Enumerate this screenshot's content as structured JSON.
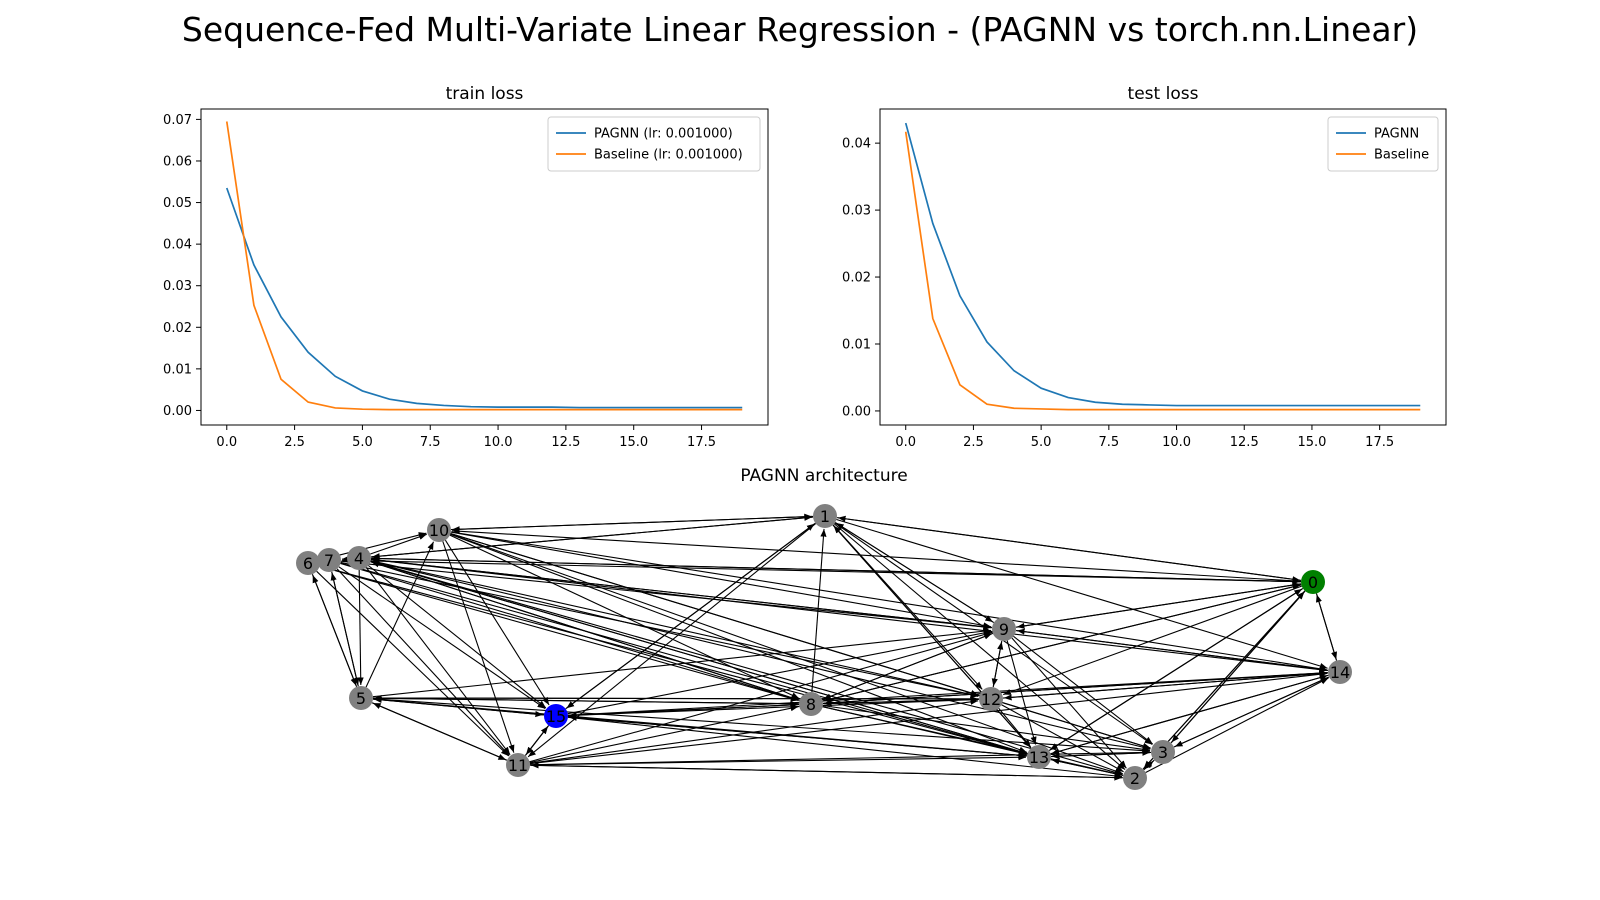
{
  "figure": {
    "title": "Sequence-Fed Multi-Variate Linear Regression - (PAGNN vs torch.nn.Linear)"
  },
  "colors": {
    "pagnn": "#1f77b4",
    "baseline": "#ff7f0e",
    "node_default": "#808080",
    "node_input": "#008000",
    "node_output": "#0000ff",
    "edge": "#000000"
  },
  "chart_data": [
    {
      "type": "line",
      "title": "train loss",
      "xlabel": "",
      "ylabel": "",
      "xlim": [
        -0.95,
        19.95
      ],
      "ylim": [
        -0.0035,
        0.0725
      ],
      "xticks": [
        0.0,
        2.5,
        5.0,
        7.5,
        10.0,
        12.5,
        15.0,
        17.5
      ],
      "xtick_labels": [
        "0.0",
        "2.5",
        "5.0",
        "7.5",
        "10.0",
        "12.5",
        "15.0",
        "17.5"
      ],
      "yticks": [
        0.0,
        0.01,
        0.02,
        0.03,
        0.04,
        0.05,
        0.06,
        0.07
      ],
      "ytick_labels": [
        "0.00",
        "0.01",
        "0.02",
        "0.03",
        "0.04",
        "0.05",
        "0.06",
        "0.07"
      ],
      "grid": false,
      "legend_position": "top-right",
      "x": [
        0,
        1,
        2,
        3,
        4,
        5,
        6,
        7,
        8,
        9,
        10,
        11,
        12,
        13,
        14,
        15,
        16,
        17,
        18,
        19
      ],
      "series": [
        {
          "name": "PAGNN (lr: 0.001000)",
          "color": "#1f77b4",
          "values": [
            0.0535,
            0.035,
            0.0225,
            0.014,
            0.0082,
            0.0047,
            0.0027,
            0.0017,
            0.0012,
            0.0009,
            0.0008,
            0.0008,
            0.0008,
            0.0007,
            0.0007,
            0.0007,
            0.0007,
            0.0007,
            0.0007,
            0.0007
          ]
        },
        {
          "name": "Baseline (lr: 0.001000)",
          "color": "#ff7f0e",
          "values": [
            0.0695,
            0.0253,
            0.0075,
            0.002,
            0.0006,
            0.0003,
            0.0002,
            0.0002,
            0.0002,
            0.0002,
            0.0002,
            0.0002,
            0.0002,
            0.0002,
            0.0002,
            0.0002,
            0.0002,
            0.0002,
            0.0002,
            0.0002
          ]
        }
      ]
    },
    {
      "type": "line",
      "title": "test loss",
      "xlabel": "",
      "ylabel": "",
      "xlim": [
        -0.95,
        19.95
      ],
      "ylim": [
        -0.0021,
        0.0451
      ],
      "xticks": [
        0.0,
        2.5,
        5.0,
        7.5,
        10.0,
        12.5,
        15.0,
        17.5
      ],
      "xtick_labels": [
        "0.0",
        "2.5",
        "5.0",
        "7.5",
        "10.0",
        "12.5",
        "15.0",
        "17.5"
      ],
      "yticks": [
        0.0,
        0.01,
        0.02,
        0.03,
        0.04
      ],
      "ytick_labels": [
        "0.00",
        "0.01",
        "0.02",
        "0.03",
        "0.04"
      ],
      "grid": false,
      "legend_position": "top-right",
      "x": [
        0,
        1,
        2,
        3,
        4,
        5,
        6,
        7,
        8,
        9,
        10,
        11,
        12,
        13,
        14,
        15,
        16,
        17,
        18,
        19
      ],
      "series": [
        {
          "name": "PAGNN",
          "color": "#1f77b4",
          "values": [
            0.043,
            0.028,
            0.0172,
            0.0103,
            0.006,
            0.0034,
            0.002,
            0.0013,
            0.001,
            0.0009,
            0.0008,
            0.0008,
            0.0008,
            0.0008,
            0.0008,
            0.0008,
            0.0008,
            0.0008,
            0.0008,
            0.0008
          ]
        },
        {
          "name": "Baseline",
          "color": "#ff7f0e",
          "values": [
            0.0417,
            0.0138,
            0.0039,
            0.001,
            0.0004,
            0.0003,
            0.0002,
            0.0002,
            0.0002,
            0.0002,
            0.0002,
            0.0002,
            0.0002,
            0.0002,
            0.0002,
            0.0002,
            0.0002,
            0.0002,
            0.0002,
            0.0002
          ]
        }
      ]
    }
  ],
  "graph": {
    "title": "PAGNN architecture",
    "input_node": "0",
    "output_node": "15",
    "nodes": [
      "0",
      "1",
      "2",
      "3",
      "4",
      "5",
      "6",
      "7",
      "8",
      "9",
      "10",
      "11",
      "12",
      "13",
      "14",
      "15"
    ],
    "edges": [
      [
        "0",
        "1"
      ],
      [
        "1",
        "0"
      ],
      [
        "0",
        "4"
      ],
      [
        "4",
        "0"
      ],
      [
        "0",
        "9"
      ],
      [
        "9",
        "0"
      ],
      [
        "0",
        "10"
      ],
      [
        "0",
        "12"
      ],
      [
        "0",
        "13"
      ],
      [
        "13",
        "0"
      ],
      [
        "0",
        "3"
      ],
      [
        "3",
        "0"
      ],
      [
        "0",
        "8"
      ],
      [
        "8",
        "0"
      ],
      [
        "0",
        "14"
      ],
      [
        "14",
        "0"
      ],
      [
        "0",
        "7"
      ],
      [
        "0",
        "2"
      ],
      [
        "2",
        "0"
      ],
      [
        "1",
        "4"
      ],
      [
        "4",
        "1"
      ],
      [
        "1",
        "10"
      ],
      [
        "10",
        "1"
      ],
      [
        "1",
        "9"
      ],
      [
        "9",
        "1"
      ],
      [
        "1",
        "12"
      ],
      [
        "1",
        "13"
      ],
      [
        "13",
        "1"
      ],
      [
        "1",
        "3"
      ],
      [
        "1",
        "2"
      ],
      [
        "1",
        "15"
      ],
      [
        "15",
        "1"
      ],
      [
        "8",
        "1"
      ],
      [
        "1",
        "11"
      ],
      [
        "1",
        "14"
      ],
      [
        "4",
        "10"
      ],
      [
        "4",
        "5"
      ],
      [
        "4",
        "9"
      ],
      [
        "9",
        "4"
      ],
      [
        "4",
        "8"
      ],
      [
        "8",
        "4"
      ],
      [
        "4",
        "12"
      ],
      [
        "4",
        "13"
      ],
      [
        "13",
        "4"
      ],
      [
        "4",
        "3"
      ],
      [
        "4",
        "2"
      ],
      [
        "4",
        "14"
      ],
      [
        "4",
        "15"
      ],
      [
        "4",
        "11"
      ],
      [
        "4",
        "7"
      ],
      [
        "6",
        "5"
      ],
      [
        "5",
        "6"
      ],
      [
        "6",
        "10"
      ],
      [
        "6",
        "13"
      ],
      [
        "6",
        "11"
      ],
      [
        "6",
        "8"
      ],
      [
        "7",
        "5"
      ],
      [
        "5",
        "7"
      ],
      [
        "7",
        "15"
      ],
      [
        "7",
        "11"
      ],
      [
        "7",
        "13"
      ],
      [
        "7",
        "8"
      ],
      [
        "7",
        "9"
      ],
      [
        "7",
        "12"
      ],
      [
        "10",
        "9"
      ],
      [
        "10",
        "13"
      ],
      [
        "10",
        "12"
      ],
      [
        "10",
        "8"
      ],
      [
        "10",
        "15"
      ],
      [
        "10",
        "11"
      ],
      [
        "10",
        "3"
      ],
      [
        "10",
        "2"
      ],
      [
        "10",
        "14"
      ],
      [
        "5",
        "10"
      ],
      [
        "5",
        "15"
      ],
      [
        "15",
        "5"
      ],
      [
        "5",
        "8"
      ],
      [
        "8",
        "5"
      ],
      [
        "5",
        "12"
      ],
      [
        "12",
        "5"
      ],
      [
        "5",
        "9"
      ],
      [
        "5",
        "11"
      ],
      [
        "11",
        "5"
      ],
      [
        "5",
        "13"
      ],
      [
        "5",
        "3"
      ],
      [
        "15",
        "8"
      ],
      [
        "8",
        "15"
      ],
      [
        "15",
        "12"
      ],
      [
        "15",
        "13"
      ],
      [
        "13",
        "15"
      ],
      [
        "15",
        "2"
      ],
      [
        "15",
        "9"
      ],
      [
        "15",
        "11"
      ],
      [
        "11",
        "15"
      ],
      [
        "15",
        "14"
      ],
      [
        "11",
        "8"
      ],
      [
        "11",
        "12"
      ],
      [
        "11",
        "13"
      ],
      [
        "11",
        "2"
      ],
      [
        "2",
        "11"
      ],
      [
        "11",
        "3"
      ],
      [
        "11",
        "9"
      ],
      [
        "11",
        "14"
      ],
      [
        "8",
        "9"
      ],
      [
        "9",
        "8"
      ],
      [
        "8",
        "12"
      ],
      [
        "12",
        "8"
      ],
      [
        "8",
        "13"
      ],
      [
        "8",
        "3"
      ],
      [
        "8",
        "2"
      ],
      [
        "8",
        "14"
      ],
      [
        "14",
        "8"
      ],
      [
        "9",
        "12"
      ],
      [
        "12",
        "9"
      ],
      [
        "9",
        "13"
      ],
      [
        "9",
        "3"
      ],
      [
        "9",
        "2"
      ],
      [
        "9",
        "14"
      ],
      [
        "14",
        "9"
      ],
      [
        "12",
        "13"
      ],
      [
        "12",
        "3"
      ],
      [
        "12",
        "2"
      ],
      [
        "12",
        "14"
      ],
      [
        "14",
        "12"
      ],
      [
        "13",
        "3"
      ],
      [
        "3",
        "13"
      ],
      [
        "13",
        "2"
      ],
      [
        "2",
        "13"
      ],
      [
        "13",
        "14"
      ],
      [
        "14",
        "13"
      ],
      [
        "3",
        "14"
      ],
      [
        "14",
        "3"
      ],
      [
        "3",
        "2"
      ],
      [
        "2",
        "3"
      ],
      [
        "2",
        "14"
      ]
    ]
  }
}
